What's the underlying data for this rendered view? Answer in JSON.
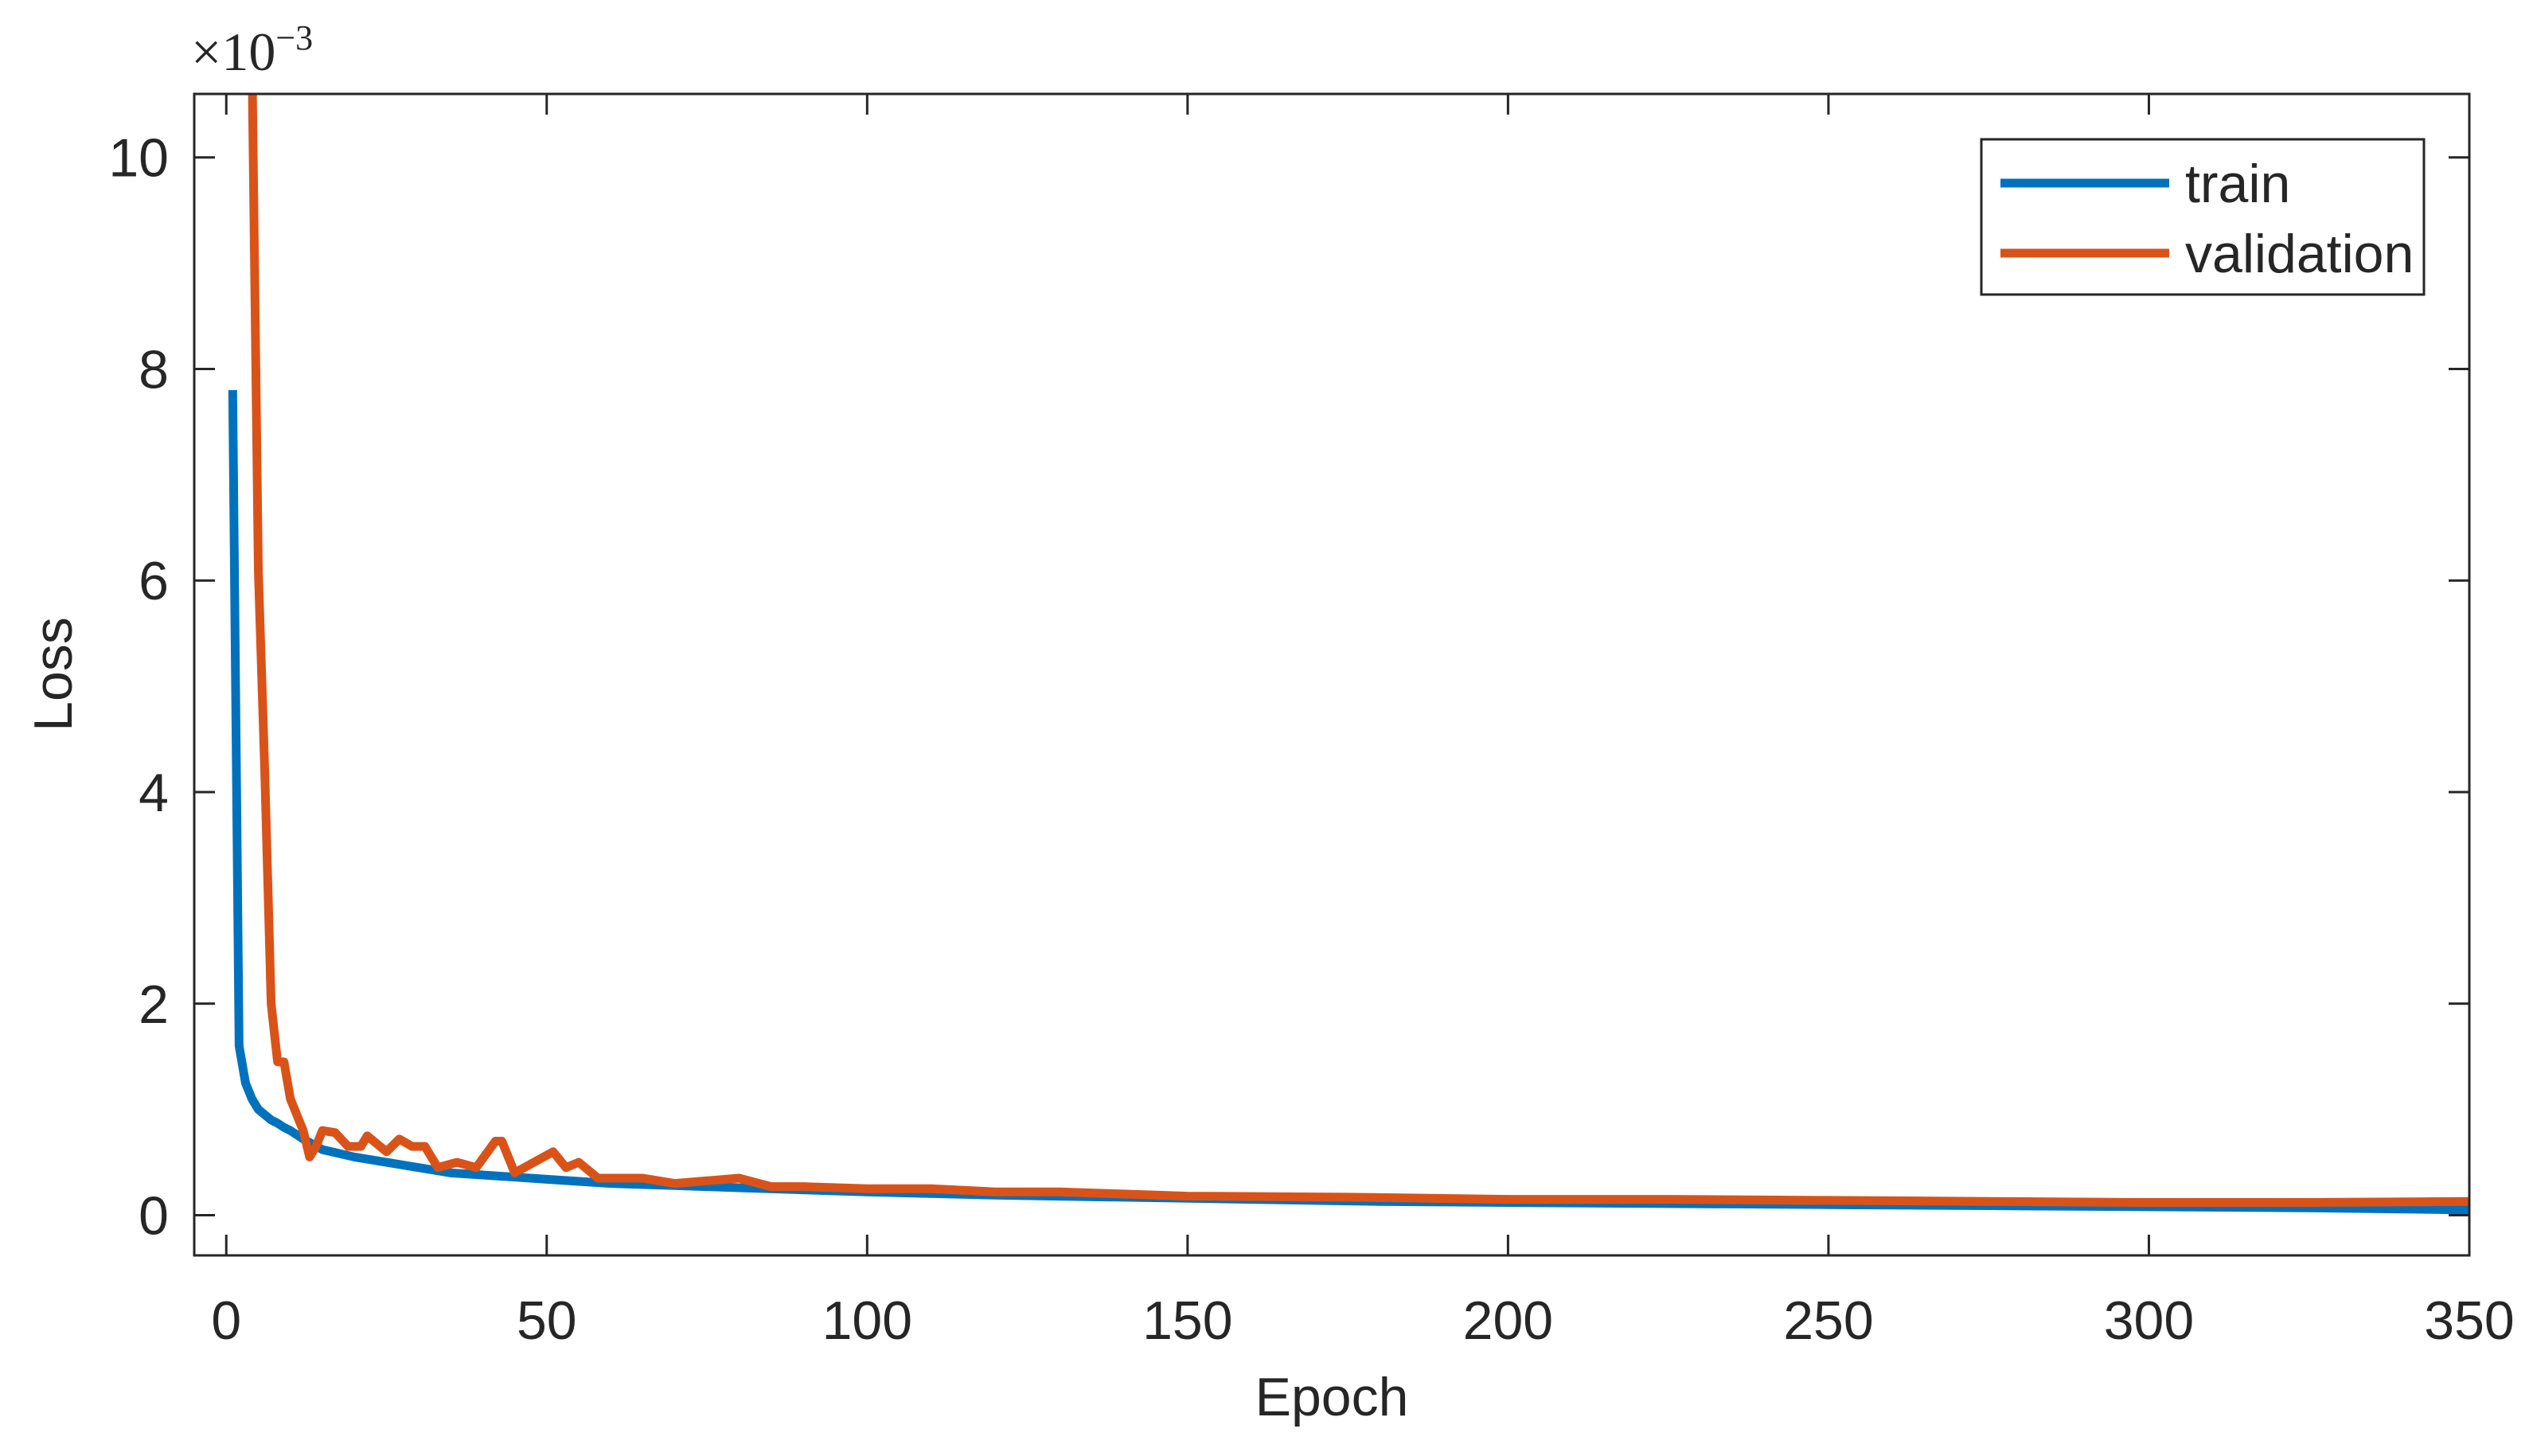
{
  "chart_data": {
    "type": "line",
    "xlabel": "Epoch",
    "ylabel": "Loss",
    "y_scale_base": "×10",
    "y_scale_exponent": "−3",
    "xlim": [
      -5,
      350
    ],
    "xticks": [
      0,
      50,
      100,
      150,
      200,
      250,
      300,
      350
    ],
    "ylim": [
      -0.38,
      10.6
    ],
    "yticks": [
      0,
      2,
      4,
      6,
      8,
      10
    ],
    "legend": "upper right",
    "series": [
      {
        "name": "train",
        "color": "#0072bd",
        "x": [
          1,
          2,
          3,
          4,
          5,
          6,
          7,
          8,
          9,
          10,
          12,
          15,
          20,
          25,
          30,
          35,
          40,
          45,
          50,
          60,
          70,
          80,
          90,
          100,
          120,
          140,
          160,
          180,
          200,
          225,
          250,
          275,
          300,
          325,
          350
        ],
        "values": [
          7.8,
          1.6,
          1.25,
          1.1,
          1.0,
          0.95,
          0.9,
          0.87,
          0.83,
          0.8,
          0.72,
          0.62,
          0.55,
          0.5,
          0.45,
          0.4,
          0.38,
          0.36,
          0.34,
          0.3,
          0.28,
          0.26,
          0.24,
          0.22,
          0.19,
          0.17,
          0.15,
          0.13,
          0.12,
          0.11,
          0.1,
          0.09,
          0.08,
          0.07,
          0.05
        ]
      },
      {
        "name": "validation",
        "color": "#d95319",
        "x": [
          4,
          5,
          6,
          7,
          8,
          9,
          10,
          11,
          12,
          13,
          14,
          15,
          17,
          19,
          21,
          22,
          25,
          27,
          29,
          31,
          33,
          36,
          39,
          42,
          43,
          45,
          48,
          51,
          53,
          55,
          58,
          65,
          70,
          80,
          85,
          90,
          100,
          110,
          120,
          130,
          140,
          150,
          175,
          200,
          225,
          250,
          275,
          300,
          325,
          350
        ],
        "values": [
          11,
          6.1,
          4.2,
          2.0,
          1.45,
          1.45,
          1.1,
          0.95,
          0.8,
          0.55,
          0.65,
          0.8,
          0.78,
          0.65,
          0.65,
          0.75,
          0.6,
          0.72,
          0.65,
          0.65,
          0.45,
          0.5,
          0.45,
          0.7,
          0.7,
          0.4,
          0.5,
          0.6,
          0.45,
          0.5,
          0.35,
          0.35,
          0.3,
          0.35,
          0.27,
          0.27,
          0.25,
          0.25,
          0.22,
          0.22,
          0.2,
          0.18,
          0.17,
          0.15,
          0.15,
          0.14,
          0.13,
          0.12,
          0.12,
          0.13
        ]
      }
    ]
  }
}
